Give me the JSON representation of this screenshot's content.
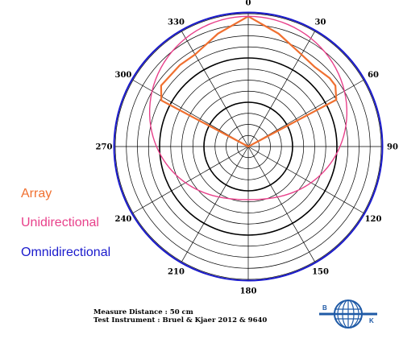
{
  "chart_data": {
    "type": "polar",
    "angle_labels": [
      "0",
      "30",
      "60",
      "90",
      "120",
      "150",
      "180",
      "210",
      "240",
      "270",
      "300",
      "330"
    ],
    "rings": 12,
    "bold_rings": [
      4,
      8
    ],
    "series": [
      {
        "name": "Array",
        "color": "#f07030",
        "points": [
          {
            "angle": 0,
            "r": 0.98
          },
          {
            "angle": 15,
            "r": 0.88
          },
          {
            "angle": 30,
            "r": 0.8
          },
          {
            "angle": 40,
            "r": 0.78
          },
          {
            "angle": 50,
            "r": 0.8
          },
          {
            "angle": 55,
            "r": 0.8
          },
          {
            "angle": 62,
            "r": 0.75
          },
          {
            "angle": 90,
            "r": 0.0
          },
          {
            "angle": 298,
            "r": 0.74
          },
          {
            "angle": 305,
            "r": 0.8
          },
          {
            "angle": 320,
            "r": 0.8
          },
          {
            "angle": 330,
            "r": 0.8
          },
          {
            "angle": 345,
            "r": 0.88
          },
          {
            "angle": 360,
            "r": 0.98
          }
        ]
      },
      {
        "name": "Unidirectional",
        "color": "#e8408a",
        "pattern": "cardioid",
        "points": [
          {
            "angle": 0,
            "r": 0.98
          },
          {
            "angle": 30,
            "r": 0.95
          },
          {
            "angle": 60,
            "r": 0.86
          },
          {
            "angle": 90,
            "r": 0.72
          },
          {
            "angle": 120,
            "r": 0.57
          },
          {
            "angle": 150,
            "r": 0.45
          },
          {
            "angle": 180,
            "r": 0.4
          },
          {
            "angle": 210,
            "r": 0.45
          },
          {
            "angle": 240,
            "r": 0.57
          },
          {
            "angle": 270,
            "r": 0.72
          },
          {
            "angle": 300,
            "r": 0.86
          },
          {
            "angle": 330,
            "r": 0.95
          }
        ]
      },
      {
        "name": "Omnidirectional",
        "color": "#1a1acc",
        "pattern": "circle",
        "points": [
          {
            "angle": 0,
            "r": 1.0
          },
          {
            "angle": 90,
            "r": 1.0
          },
          {
            "angle": 180,
            "r": 1.0
          },
          {
            "angle": 270,
            "r": 1.0
          }
        ]
      }
    ],
    "legend": [
      "Array",
      "Unidirectional",
      "Omnidirectional"
    ],
    "legend_placement": "left"
  },
  "notes": {
    "line1": "Measure Distance : 50 cm",
    "line2": "Test Instrument : Bruel & Kjaer 2012 & 9640"
  },
  "logo": {
    "left_letter": "B",
    "right_letter": "K",
    "color": "#1f5aa6"
  }
}
